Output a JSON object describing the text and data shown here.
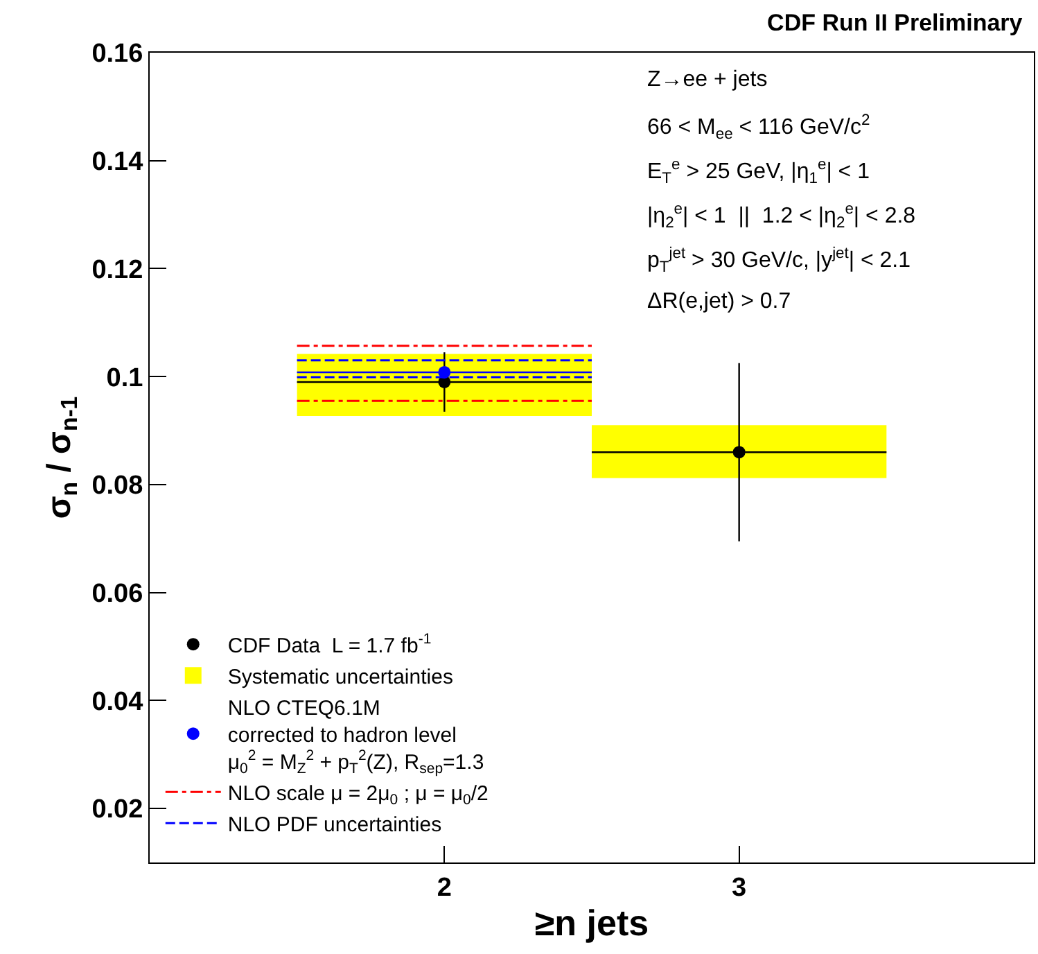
{
  "chart_data": {
    "type": "scatter",
    "title": "CDF Run II Preliminary",
    "xlabel": "≥n jets",
    "ylabel": "σ$_{n}$ / σ$_{n-1}$",
    "annotations": [
      "Z→ee + jets",
      "66 < M$_{ee}$ < 116 GeV/c$^{2}$",
      "E$_{T}$$^{e}$ > 25 GeV, |η$_{1}$$^{e}$| < 1",
      "|η$_{2}$$^{e}$| < 1  ||  1.2 < |η$_{2}$$^{e}$| < 2.8",
      "p$_{T}$$^{jet}$ > 30 GeV/c, |y$^{jet}$| < 2.1",
      "ΔR(e,jet) > 0.7"
    ],
    "series": [
      {
        "name": "CDF Data  L = 1.7 fb$^{-1}$",
        "color": "#000000",
        "marker": "circle",
        "x": [
          2,
          3
        ],
        "values": [
          0.099,
          0.086
        ],
        "errors": [
          0.0055,
          0.0165
        ],
        "xerrors": [
          0.5,
          0.5
        ]
      },
      {
        "name": "Systematic uncertainties",
        "type": "bar",
        "color": "#ffff00",
        "x": [
          2,
          3
        ],
        "base": [
          0.0927,
          0.0812
        ],
        "values": [
          0.0115,
          0.0098
        ]
      },
      {
        "name": "NLO CTEQ6.1M\ncorrected to hadron level\nμ$_{0}$$^{2}$ = M$_{Z}$$^{2}$ + p$_{T}$$^{2}$(Z), R$_{sep}$=1.3",
        "type": "scatter",
        "color": "#0000ff",
        "marker": "circle",
        "x": [
          2
        ],
        "values": [
          0.1008
        ],
        "xerrors": [
          0.5
        ]
      },
      {
        "name": "NLO scale μ = 2μ$_{0}$ ; μ = μ$_{0}$/2",
        "type": "line",
        "color": "#ff0000",
        "line_style": "dashdot",
        "x": [
          1.5,
          2.5
        ],
        "values": [
          0.1057,
          0.1057
        ]
      },
      {
        "type": "line",
        "color": "#ff0000",
        "line_style": "dashdot",
        "x": [
          1.5,
          2.5
        ],
        "values": [
          0.0955,
          0.0955
        ]
      },
      {
        "name": "NLO PDF uncertainties",
        "type": "line",
        "color": "#0000ff",
        "line_style": "dashed",
        "x": [
          1.5,
          2.5
        ],
        "values": [
          0.103,
          0.103
        ]
      },
      {
        "type": "line",
        "color": "#0000ff",
        "line_style": "dashed",
        "x": [
          1.5,
          2.5
        ],
        "values": [
          0.0999,
          0.0999
        ]
      }
    ],
    "xlim": [
      1,
      4
    ],
    "xticks": [
      2,
      3
    ],
    "ylim": [
      0.01,
      0.16
    ],
    "yticks": [
      0.02,
      0.04,
      0.06,
      0.08,
      0.1,
      0.12,
      0.14,
      0.16
    ],
    "grid": false,
    "legend": "bottom left"
  }
}
